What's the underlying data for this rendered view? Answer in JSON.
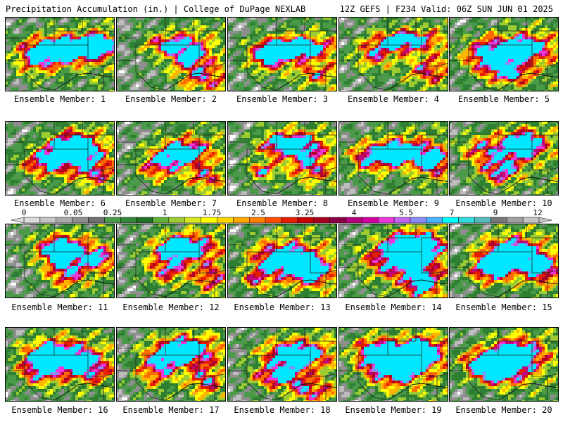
{
  "header": {
    "title": "Precipitation Accumulation (in.) | College of DuPage NEXLAB",
    "run_info": "12Z GEFS | F234 Valid: 06Z SUN JUN 01 2025"
  },
  "colorbar": {
    "ticks": [
      "0",
      "0.05",
      "0.25",
      "1",
      "1.75",
      "2.5",
      "3.25",
      "4",
      "5.5",
      "7",
      "9",
      "12"
    ],
    "colors": [
      "#dcdcdc",
      "#c4c4c4",
      "#aaaaaa",
      "#8e8e8e",
      "#6f6f6f",
      "#4a9a4a",
      "#36863a",
      "#237027",
      "#62b23a",
      "#9ccc32",
      "#d6e820",
      "#ffff00",
      "#ffd500",
      "#ffa800",
      "#ff7f00",
      "#ff4d00",
      "#e61e00",
      "#c80000",
      "#a8001e",
      "#8c0046",
      "#b4007a",
      "#d2009e",
      "#ec36d8",
      "#c266f0",
      "#8a8cf5",
      "#46b4ff",
      "#00ffff",
      "#32dcdc",
      "#55bcbc",
      "#787878",
      "#a0a0a0",
      "#c3c3c3"
    ]
  },
  "panels": [
    {
      "label": "Ensemble Member: 1"
    },
    {
      "label": "Ensemble Member: 2"
    },
    {
      "label": "Ensemble Member: 3"
    },
    {
      "label": "Ensemble Member: 4"
    },
    {
      "label": "Ensemble Member: 5"
    },
    {
      "label": "Ensemble Member: 6"
    },
    {
      "label": "Ensemble Member: 7"
    },
    {
      "label": "Ensemble Member: 8"
    },
    {
      "label": "Ensemble Member: 9"
    },
    {
      "label": "Ensemble Member: 10"
    },
    {
      "label": "Ensemble Member: 11"
    },
    {
      "label": "Ensemble Member: 12"
    },
    {
      "label": "Ensemble Member: 13"
    },
    {
      "label": "Ensemble Member: 14"
    },
    {
      "label": "Ensemble Member: 15"
    },
    {
      "label": "Ensemble Member: 16"
    },
    {
      "label": "Ensemble Member: 17"
    },
    {
      "label": "Ensemble Member: 18"
    },
    {
      "label": "Ensemble Member: 19"
    },
    {
      "label": "Ensemble Member: 20"
    }
  ]
}
